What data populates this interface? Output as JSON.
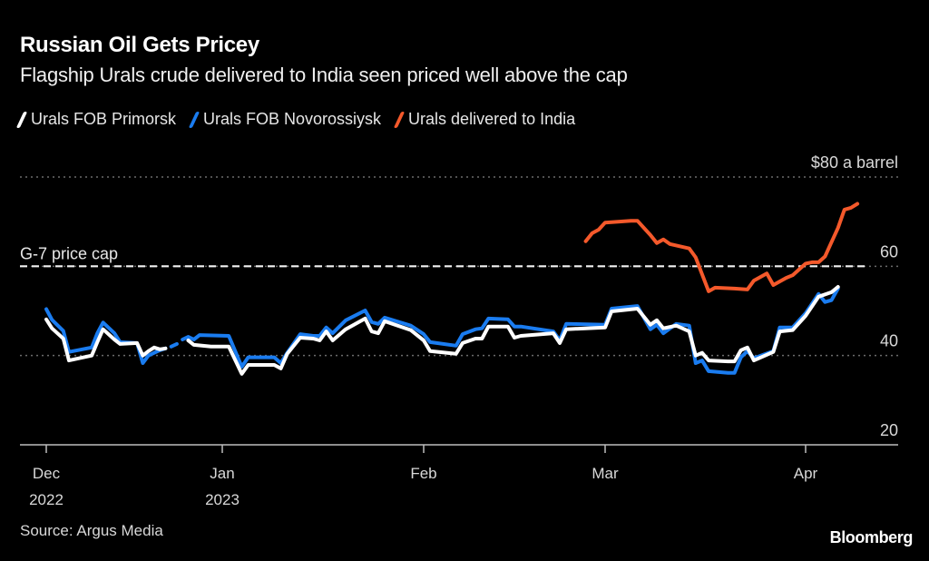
{
  "header": {
    "title": "Russian Oil Gets Pricey",
    "subtitle": "Flagship Urals crude delivered to India seen priced well above the cap"
  },
  "legend": [
    {
      "label": "Urals FOB Primorsk",
      "color": "#ffffff"
    },
    {
      "label": "Urals FOB Novorossiysk",
      "color": "#1a7cf0"
    },
    {
      "label": "Urals delivered to India",
      "color": "#f4592b"
    }
  ],
  "footer": {
    "source": "Source: Argus Media",
    "brand": "Bloomberg"
  },
  "chart_data": {
    "type": "line",
    "title": "Russian Oil Gets Pricey",
    "subtitle": "Flagship Urals crude delivered to India seen priced well above the cap",
    "xlabel": "",
    "ylabel": "$ a barrel",
    "y_unit_label": "$80 a barrel",
    "ylim": [
      20,
      80
    ],
    "yticks": [
      20,
      40,
      60,
      80
    ],
    "ytick_labels": [
      "20",
      "40",
      "60",
      "$80 a barrel"
    ],
    "grid": true,
    "legend_position": "top-left",
    "x_unit": "days since 2022-12-01",
    "xticks": [
      {
        "day": 0,
        "label": "Dec",
        "sublabel": "2022"
      },
      {
        "day": 31,
        "label": "Jan",
        "sublabel": "2023"
      },
      {
        "day": 62,
        "label": "Feb",
        "sublabel": ""
      },
      {
        "day": 90,
        "label": "Mar",
        "sublabel": ""
      },
      {
        "day": 121,
        "label": "Apr",
        "sublabel": ""
      }
    ],
    "reference_line": {
      "value": 60,
      "label": "G-7 price cap"
    },
    "series": [
      {
        "name": "Urals FOB Primorsk",
        "color": "#ffffff",
        "segments": [
          [
            [
              0,
              48.1
            ],
            [
              1,
              46.1
            ],
            [
              3,
              43.8
            ],
            [
              4,
              38.9
            ],
            [
              8,
              40.0
            ],
            [
              9,
              43.0
            ],
            [
              10,
              45.9
            ],
            [
              12,
              43.6
            ],
            [
              13,
              42.6
            ],
            [
              16,
              42.8
            ],
            [
              17,
              40.0
            ],
            [
              18,
              41.0
            ],
            [
              19,
              41.8
            ],
            [
              20,
              41.4
            ],
            [
              21,
              41.6
            ]
          ],
          [
            [
              25,
              43.4
            ],
            [
              26,
              42.4
            ],
            [
              29,
              42.0
            ],
            [
              32,
              42.0
            ],
            [
              34,
              35.9
            ],
            [
              35,
              37.9
            ],
            [
              39,
              37.9
            ],
            [
              40,
              37.1
            ],
            [
              41,
              40.4
            ],
            [
              43,
              44.0
            ],
            [
              45,
              43.8
            ],
            [
              46,
              43.4
            ],
            [
              47,
              45.4
            ],
            [
              48,
              43.4
            ],
            [
              50,
              45.9
            ],
            [
              53,
              48.3
            ],
            [
              54,
              45.4
            ],
            [
              55,
              45.0
            ],
            [
              56,
              47.7
            ],
            [
              60,
              45.7
            ],
            [
              62,
              43.4
            ],
            [
              63,
              41.0
            ],
            [
              67,
              40.4
            ],
            [
              68,
              42.8
            ],
            [
              70,
              43.8
            ],
            [
              71,
              43.8
            ],
            [
              72,
              46.5
            ],
            [
              75,
              46.5
            ],
            [
              76,
              44.0
            ],
            [
              77,
              44.4
            ],
            [
              82,
              45.0
            ],
            [
              83,
              42.8
            ],
            [
              84,
              45.9
            ],
            [
              90,
              46.3
            ],
            [
              91,
              49.9
            ],
            [
              95,
              50.5
            ],
            [
              97,
              46.9
            ],
            [
              98,
              47.9
            ],
            [
              99,
              46.1
            ],
            [
              101,
              46.7
            ],
            [
              103,
              45.4
            ],
            [
              104,
              40.0
            ],
            [
              105,
              40.6
            ],
            [
              106,
              38.9
            ],
            [
              109,
              38.7
            ],
            [
              110,
              38.7
            ],
            [
              111,
              41.2
            ],
            [
              112,
              41.8
            ],
            [
              113,
              38.9
            ],
            [
              116,
              40.8
            ],
            [
              117,
              45.4
            ],
            [
              119,
              45.7
            ],
            [
              121,
              48.9
            ],
            [
              123,
              53.2
            ],
            [
              125,
              54.2
            ],
            [
              126,
              55.4
            ]
          ]
        ]
      },
      {
        "name": "Urals FOB Novorossiysk",
        "color": "#1a7cf0",
        "segments": [
          [
            [
              0,
              50.4
            ],
            [
              1,
              48.0
            ],
            [
              3,
              45.5
            ],
            [
              4,
              40.8
            ],
            [
              8,
              41.8
            ],
            [
              9,
              45.0
            ],
            [
              10,
              47.4
            ],
            [
              12,
              45.0
            ],
            [
              13,
              43.0
            ],
            [
              16,
              42.8
            ],
            [
              17,
              38.3
            ],
            [
              18,
              40.0
            ],
            [
              19,
              40.6
            ],
            [
              20,
              41.2
            ],
            [
              21,
              41.6
            ]
          ],
          [
            [
              22,
              42.0
            ],
            [
              23,
              42.6
            ]
          ],
          [
            [
              24,
              43.6
            ],
            [
              25,
              44.2
            ],
            [
              26,
              43.6
            ],
            [
              27,
              44.6
            ],
            [
              32,
              44.4
            ],
            [
              34,
              37.5
            ],
            [
              35,
              39.6
            ],
            [
              39,
              39.6
            ],
            [
              40,
              38.3
            ],
            [
              41,
              40.6
            ],
            [
              43,
              44.8
            ],
            [
              45,
              44.4
            ],
            [
              46,
              44.4
            ],
            [
              47,
              46.3
            ],
            [
              48,
              45.0
            ],
            [
              50,
              47.9
            ],
            [
              53,
              50.1
            ],
            [
              54,
              47.5
            ],
            [
              55,
              47.1
            ],
            [
              56,
              48.5
            ],
            [
              60,
              46.7
            ],
            [
              62,
              44.8
            ],
            [
              63,
              43.0
            ],
            [
              67,
              42.2
            ],
            [
              68,
              44.8
            ],
            [
              70,
              45.9
            ],
            [
              71,
              46.1
            ],
            [
              72,
              48.3
            ],
            [
              75,
              48.1
            ],
            [
              76,
              46.5
            ],
            [
              77,
              46.5
            ],
            [
              82,
              45.4
            ],
            [
              83,
              43.4
            ],
            [
              84,
              47.1
            ],
            [
              90,
              46.9
            ],
            [
              91,
              50.5
            ],
            [
              95,
              51.1
            ],
            [
              97,
              45.9
            ],
            [
              98,
              46.9
            ],
            [
              99,
              45.0
            ],
            [
              101,
              47.1
            ],
            [
              103,
              46.7
            ],
            [
              104,
              38.3
            ],
            [
              105,
              38.9
            ],
            [
              106,
              36.5
            ],
            [
              109,
              36.1
            ],
            [
              110,
              36.1
            ],
            [
              111,
              39.6
            ],
            [
              112,
              41.0
            ],
            [
              113,
              39.4
            ],
            [
              116,
              41.0
            ],
            [
              117,
              46.3
            ],
            [
              119,
              46.3
            ],
            [
              121,
              49.5
            ],
            [
              123,
              53.8
            ],
            [
              124,
              52.0
            ],
            [
              125,
              52.4
            ],
            [
              126,
              55.0
            ]
          ]
        ]
      },
      {
        "name": "Urals delivered to India",
        "color": "#f4592b",
        "segments": [
          [
            [
              87,
              65.6
            ],
            [
              88,
              67.4
            ],
            [
              89,
              68.2
            ],
            [
              90,
              69.8
            ],
            [
              94,
              70.2
            ],
            [
              95,
              70.2
            ],
            [
              97,
              67.0
            ],
            [
              98,
              65.2
            ],
            [
              99,
              66.0
            ],
            [
              100,
              65.0
            ],
            [
              103,
              64.0
            ],
            [
              104,
              62.0
            ],
            [
              105,
              58.2
            ],
            [
              106,
              54.4
            ],
            [
              107,
              55.2
            ],
            [
              110,
              55.0
            ],
            [
              112,
              54.8
            ],
            [
              113,
              56.8
            ],
            [
              115,
              58.4
            ],
            [
              116,
              55.8
            ],
            [
              118,
              57.4
            ],
            [
              119,
              58.0
            ],
            [
              121,
              60.6
            ],
            [
              122,
              60.9
            ],
            [
              123,
              60.9
            ],
            [
              124,
              62.2
            ],
            [
              125,
              65.4
            ],
            [
              126,
              68.6
            ],
            [
              127,
              72.7
            ],
            [
              128,
              73.1
            ],
            [
              129,
              74.0
            ]
          ]
        ]
      }
    ]
  }
}
